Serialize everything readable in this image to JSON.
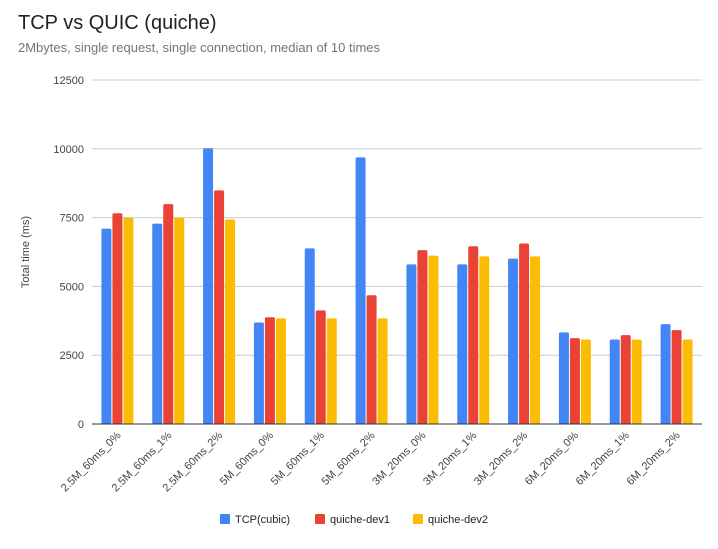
{
  "chart_data": {
    "type": "bar",
    "title": "TCP vs QUIC (quiche)",
    "subtitle": "2Mbytes, single request, single connection, median of 10 times",
    "xlabel": "",
    "ylabel": "Total time (ms)",
    "ylim": [
      0,
      12500
    ],
    "yticks": [
      0,
      2500,
      5000,
      7500,
      10000,
      12500
    ],
    "grid": true,
    "legend_position": "bottom",
    "categories": [
      "2.5M_60ms_0%",
      "2.5M_60ms_1%",
      "2.5M_60ms_2%",
      "5M_60ms_0%",
      "5M_60ms_1%",
      "5M_60ms_2%",
      "3M_20ms_0%",
      "3M_20ms_1%",
      "3M_20ms_2%",
      "6M_20ms_0%",
      "6M_20ms_1%",
      "6M_20ms_2%"
    ],
    "series": [
      {
        "name": "TCP(cubic)",
        "color": "#4285f4",
        "values": [
          7100,
          7280,
          10020,
          3690,
          6380,
          9690,
          5800,
          5800,
          6010,
          3330,
          3070,
          3630
        ]
      },
      {
        "name": "quiche-dev1",
        "color": "#ea4335",
        "values": [
          7660,
          7990,
          8490,
          3880,
          4130,
          4680,
          6320,
          6460,
          6560,
          3120,
          3230,
          3410
        ]
      },
      {
        "name": "quiche-dev2",
        "color": "#fbbc04",
        "values": [
          7500,
          7500,
          7430,
          3840,
          3840,
          3840,
          6120,
          6090,
          6090,
          3070,
          3070,
          3070
        ]
      }
    ]
  }
}
